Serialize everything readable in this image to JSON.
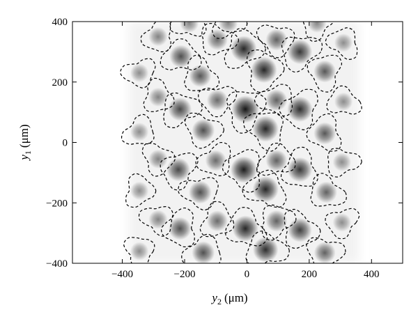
{
  "chart_data": {
    "type": "heatmap",
    "title": "",
    "xlabel": {
      "symbol": "y",
      "subscript": "2",
      "unit": "(μm)"
    },
    "ylabel": {
      "symbol": "y",
      "subscript": "1",
      "unit": "(μm)"
    },
    "xlim": [
      -560,
      500
    ],
    "ylim": [
      -400,
      400
    ],
    "xticks": [
      -400,
      -200,
      0,
      200,
      400
    ],
    "yticks": [
      -400,
      -200,
      0,
      200,
      400
    ],
    "grid": false,
    "colormap": "grayscale (white = low, black = high)",
    "contour_style": "dashed black",
    "spots": [
      {
        "x": -212,
        "y": 285,
        "w": 0.6
      },
      {
        "x": -215,
        "y": 110,
        "w": 0.65
      },
      {
        "x": -220,
        "y": -90,
        "w": 0.65
      },
      {
        "x": -215,
        "y": -285,
        "w": 0.6
      },
      {
        "x": -150,
        "y": 220,
        "w": 0.55
      },
      {
        "x": -140,
        "y": 40,
        "w": 0.6
      },
      {
        "x": -150,
        "y": -165,
        "w": 0.6
      },
      {
        "x": -140,
        "y": -365,
        "w": 0.6
      },
      {
        "x": -10,
        "y": 310,
        "w": 0.85
      },
      {
        "x": -5,
        "y": 110,
        "w": 0.95
      },
      {
        "x": -10,
        "y": -90,
        "w": 0.9
      },
      {
        "x": -5,
        "y": -285,
        "w": 0.85
      },
      {
        "x": -95,
        "y": 340,
        "w": 0.45
      },
      {
        "x": -95,
        "y": 140,
        "w": 0.45
      },
      {
        "x": -100,
        "y": -60,
        "w": 0.45
      },
      {
        "x": -95,
        "y": -260,
        "w": 0.45
      },
      {
        "x": 55,
        "y": 240,
        "w": 0.85
      },
      {
        "x": 60,
        "y": 45,
        "w": 0.85
      },
      {
        "x": 60,
        "y": -155,
        "w": 0.85
      },
      {
        "x": 60,
        "y": -355,
        "w": 0.8
      },
      {
        "x": 170,
        "y": 300,
        "w": 0.75
      },
      {
        "x": 170,
        "y": 110,
        "w": 0.8
      },
      {
        "x": 170,
        "y": -90,
        "w": 0.75
      },
      {
        "x": 170,
        "y": -290,
        "w": 0.7
      },
      {
        "x": 95,
        "y": 340,
        "w": 0.5
      },
      {
        "x": 95,
        "y": 140,
        "w": 0.5
      },
      {
        "x": 95,
        "y": -60,
        "w": 0.5
      },
      {
        "x": 95,
        "y": -260,
        "w": 0.5
      },
      {
        "x": 250,
        "y": 235,
        "w": 0.55
      },
      {
        "x": 250,
        "y": 30,
        "w": 0.55
      },
      {
        "x": 255,
        "y": -165,
        "w": 0.5
      },
      {
        "x": 250,
        "y": -365,
        "w": 0.5
      },
      {
        "x": -345,
        "y": 230,
        "w": 0.25
      },
      {
        "x": -345,
        "y": 35,
        "w": 0.25
      },
      {
        "x": -345,
        "y": -160,
        "w": 0.25
      },
      {
        "x": -345,
        "y": -360,
        "w": 0.25
      },
      {
        "x": 310,
        "y": 330,
        "w": 0.25
      },
      {
        "x": 310,
        "y": 135,
        "w": 0.25
      },
      {
        "x": 305,
        "y": -65,
        "w": 0.25
      },
      {
        "x": 305,
        "y": -265,
        "w": 0.25
      },
      {
        "x": -285,
        "y": 350,
        "w": 0.3
      },
      {
        "x": -285,
        "y": 150,
        "w": 0.3
      },
      {
        "x": -285,
        "y": -55,
        "w": 0.3
      },
      {
        "x": -285,
        "y": -255,
        "w": 0.3
      },
      {
        "x": -185,
        "y": 395,
        "w": 0.3
      },
      {
        "x": -60,
        "y": 395,
        "w": 0.3
      },
      {
        "x": 225,
        "y": 395,
        "w": 0.3
      }
    ]
  }
}
